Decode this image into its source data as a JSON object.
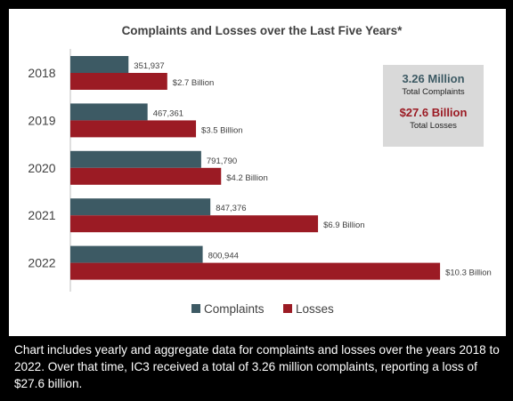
{
  "chart_data": {
    "type": "bar",
    "orientation": "horizontal",
    "title": "Complaints and Losses over the Last Five Years*",
    "categories": [
      "2018",
      "2019",
      "2020",
      "2021",
      "2022"
    ],
    "series": [
      {
        "name": "Complaints",
        "values": [
          351937,
          467361,
          791790,
          847376,
          800944
        ],
        "labels": [
          "351,937",
          "467,361",
          "791,790",
          "847,376",
          "800,944"
        ],
        "color": "#3d5a64"
      },
      {
        "name": "Losses",
        "values": [
          2.7,
          3.5,
          4.2,
          6.9,
          10.3
        ],
        "unit": "billion USD",
        "labels": [
          "$2.7 Billion",
          "$3.5 Billion",
          "$4.2 Billion",
          "$6.9 Billion",
          "$10.3 Billion"
        ],
        "color": "#9b1b24"
      }
    ],
    "legend_position": "bottom",
    "grid": false
  },
  "summary": {
    "complaints_value": "3.26 Million",
    "complaints_label": "Total Complaints",
    "complaints_color": "#3d5a64",
    "losses_value": "$27.6 Billion",
    "losses_label": "Total Losses",
    "losses_color": "#9b1b24"
  },
  "caption": "Chart includes yearly and aggregate data for complaints and losses over the years 2018 to 2022. Over that time, IC3 received a total of 3.26 million complaints, reporting a loss of $27.6 billion."
}
